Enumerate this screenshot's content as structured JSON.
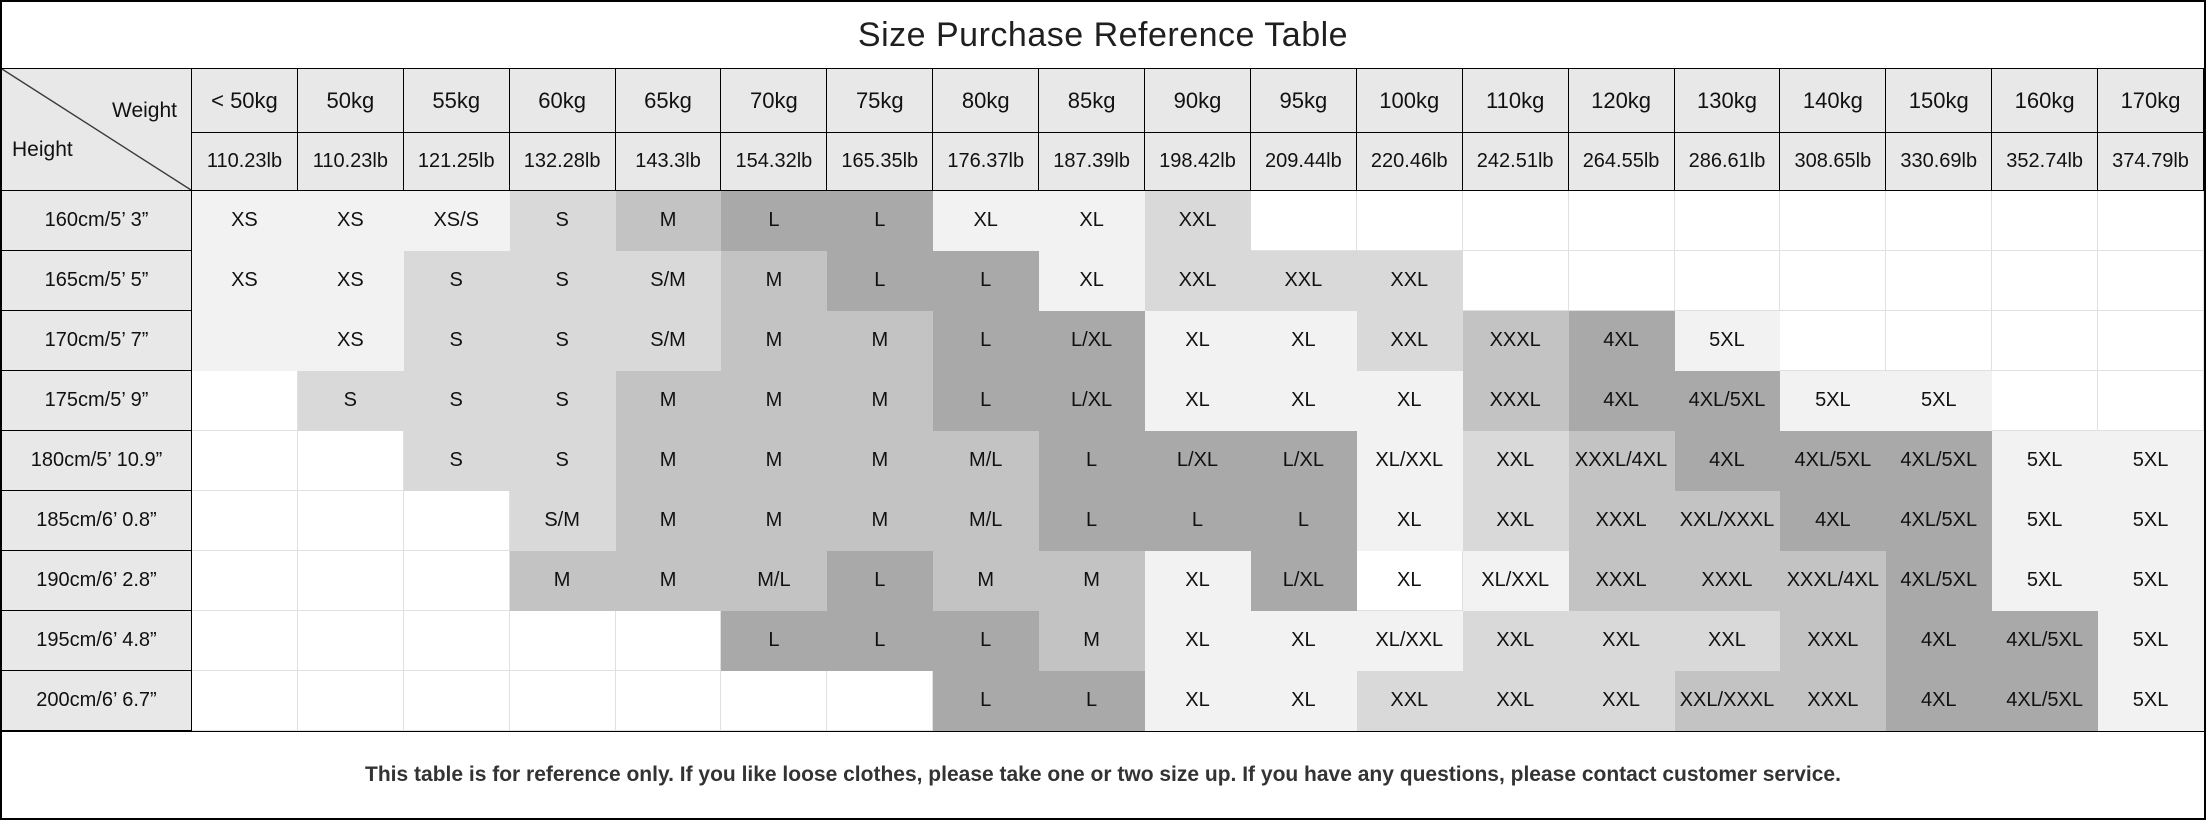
{
  "title": "Size Purchase Reference Table",
  "corner": {
    "weight_label": "Weight",
    "height_label": "Height"
  },
  "footer": "This table is for reference only. If you like loose clothes, please take one or two size up. If you have any questions, please contact customer service.",
  "colors": {
    "header_bg": "#e8e8e8",
    "grid_line": "#e0e0e0",
    "header_border": "#000000",
    "shades": [
      "#ffffff",
      "#f2f2f2",
      "#d9d9d9",
      "#c3c3c3",
      "#a9a9a9"
    ]
  },
  "columns": [
    {
      "kg": "< 50kg",
      "lb": "110.23lb"
    },
    {
      "kg": "50kg",
      "lb": "110.23lb"
    },
    {
      "kg": "55kg",
      "lb": "121.25lb"
    },
    {
      "kg": "60kg",
      "lb": "132.28lb"
    },
    {
      "kg": "65kg",
      "lb": "143.3lb"
    },
    {
      "kg": "70kg",
      "lb": "154.32lb"
    },
    {
      "kg": "75kg",
      "lb": "165.35lb"
    },
    {
      "kg": "80kg",
      "lb": "176.37lb"
    },
    {
      "kg": "85kg",
      "lb": "187.39lb"
    },
    {
      "kg": "90kg",
      "lb": "198.42lb"
    },
    {
      "kg": "95kg",
      "lb": "209.44lb"
    },
    {
      "kg": "100kg",
      "lb": "220.46lb"
    },
    {
      "kg": "110kg",
      "lb": "242.51lb"
    },
    {
      "kg": "120kg",
      "lb": "264.55lb"
    },
    {
      "kg": "130kg",
      "lb": "286.61lb"
    },
    {
      "kg": "140kg",
      "lb": "308.65lb"
    },
    {
      "kg": "150kg",
      "lb": "330.69lb"
    },
    {
      "kg": "160kg",
      "lb": "352.74lb"
    },
    {
      "kg": "170kg",
      "lb": "374.79lb"
    }
  ],
  "rows": [
    {
      "height": "160cm/5’ 3”",
      "cells": [
        {
          "t": "XS",
          "s": 1
        },
        {
          "t": "XS",
          "s": 1
        },
        {
          "t": "XS/S",
          "s": 1
        },
        {
          "t": "S",
          "s": 2
        },
        {
          "t": "M",
          "s": 3
        },
        {
          "t": "L",
          "s": 4
        },
        {
          "t": "L",
          "s": 4
        },
        {
          "t": "XL",
          "s": 1
        },
        {
          "t": "XL",
          "s": 1
        },
        {
          "t": "XXL",
          "s": 2
        },
        {
          "t": "",
          "s": 0
        },
        {
          "t": "",
          "s": 0
        },
        {
          "t": "",
          "s": 0
        },
        {
          "t": "",
          "s": 0
        },
        {
          "t": "",
          "s": 0
        },
        {
          "t": "",
          "s": 0
        },
        {
          "t": "",
          "s": 0
        },
        {
          "t": "",
          "s": 0
        },
        {
          "t": "",
          "s": 0
        }
      ]
    },
    {
      "height": "165cm/5’ 5”",
      "cells": [
        {
          "t": "XS",
          "s": 1
        },
        {
          "t": "XS",
          "s": 1
        },
        {
          "t": "S",
          "s": 2
        },
        {
          "t": "S",
          "s": 2
        },
        {
          "t": "S/M",
          "s": 2
        },
        {
          "t": "M",
          "s": 3
        },
        {
          "t": "L",
          "s": 4
        },
        {
          "t": "L",
          "s": 4
        },
        {
          "t": "XL",
          "s": 1
        },
        {
          "t": "XXL",
          "s": 2
        },
        {
          "t": "XXL",
          "s": 2
        },
        {
          "t": "XXL",
          "s": 2
        },
        {
          "t": "",
          "s": 0
        },
        {
          "t": "",
          "s": 0
        },
        {
          "t": "",
          "s": 0
        },
        {
          "t": "",
          "s": 0
        },
        {
          "t": "",
          "s": 0
        },
        {
          "t": "",
          "s": 0
        },
        {
          "t": "",
          "s": 0
        }
      ]
    },
    {
      "height": "170cm/5’ 7”",
      "cells": [
        {
          "t": "",
          "s": 1
        },
        {
          "t": "XS",
          "s": 1
        },
        {
          "t": "S",
          "s": 2
        },
        {
          "t": "S",
          "s": 2
        },
        {
          "t": "S/M",
          "s": 2
        },
        {
          "t": "M",
          "s": 3
        },
        {
          "t": "M",
          "s": 3
        },
        {
          "t": "L",
          "s": 4
        },
        {
          "t": "L/XL",
          "s": 4
        },
        {
          "t": "XL",
          "s": 1
        },
        {
          "t": "XL",
          "s": 1
        },
        {
          "t": "XXL",
          "s": 2
        },
        {
          "t": "XXXL",
          "s": 3
        },
        {
          "t": "4XL",
          "s": 4
        },
        {
          "t": "5XL",
          "s": 1
        },
        {
          "t": "",
          "s": 0
        },
        {
          "t": "",
          "s": 0
        },
        {
          "t": "",
          "s": 0
        },
        {
          "t": "",
          "s": 0
        }
      ]
    },
    {
      "height": "175cm/5’ 9”",
      "cells": [
        {
          "t": "",
          "s": 0
        },
        {
          "t": "S",
          "s": 2
        },
        {
          "t": "S",
          "s": 2
        },
        {
          "t": "S",
          "s": 2
        },
        {
          "t": "M",
          "s": 3
        },
        {
          "t": "M",
          "s": 3
        },
        {
          "t": "M",
          "s": 3
        },
        {
          "t": "L",
          "s": 4
        },
        {
          "t": "L/XL",
          "s": 4
        },
        {
          "t": "XL",
          "s": 1
        },
        {
          "t": "XL",
          "s": 1
        },
        {
          "t": "XL",
          "s": 1
        },
        {
          "t": "XXXL",
          "s": 3
        },
        {
          "t": "4XL",
          "s": 4
        },
        {
          "t": "4XL/5XL",
          "s": 4
        },
        {
          "t": "5XL",
          "s": 1
        },
        {
          "t": "5XL",
          "s": 1
        },
        {
          "t": "",
          "s": 0
        },
        {
          "t": "",
          "s": 0
        }
      ]
    },
    {
      "height": "180cm/5’ 10.9”",
      "cells": [
        {
          "t": "",
          "s": 0
        },
        {
          "t": "",
          "s": 0
        },
        {
          "t": "S",
          "s": 2
        },
        {
          "t": "S",
          "s": 2
        },
        {
          "t": "M",
          "s": 3
        },
        {
          "t": "M",
          "s": 3
        },
        {
          "t": "M",
          "s": 3
        },
        {
          "t": "M/L",
          "s": 3
        },
        {
          "t": "L",
          "s": 4
        },
        {
          "t": "L/XL",
          "s": 4
        },
        {
          "t": "L/XL",
          "s": 4
        },
        {
          "t": "XL/XXL",
          "s": 1
        },
        {
          "t": "XXL",
          "s": 2
        },
        {
          "t": "XXXL/4XL",
          "s": 3
        },
        {
          "t": "4XL",
          "s": 4
        },
        {
          "t": "4XL/5XL",
          "s": 4
        },
        {
          "t": "4XL/5XL",
          "s": 4
        },
        {
          "t": "5XL",
          "s": 1
        },
        {
          "t": "5XL",
          "s": 1
        }
      ]
    },
    {
      "height": "185cm/6’ 0.8”",
      "cells": [
        {
          "t": "",
          "s": 0
        },
        {
          "t": "",
          "s": 0
        },
        {
          "t": "",
          "s": 0
        },
        {
          "t": "S/M",
          "s": 2
        },
        {
          "t": "M",
          "s": 3
        },
        {
          "t": "M",
          "s": 3
        },
        {
          "t": "M",
          "s": 3
        },
        {
          "t": "M/L",
          "s": 3
        },
        {
          "t": "L",
          "s": 4
        },
        {
          "t": "L",
          "s": 4
        },
        {
          "t": "L",
          "s": 4
        },
        {
          "t": "XL",
          "s": 1
        },
        {
          "t": "XXL",
          "s": 2
        },
        {
          "t": "XXXL",
          "s": 3
        },
        {
          "t": "XXL/XXXL",
          "s": 3
        },
        {
          "t": "4XL",
          "s": 4
        },
        {
          "t": "4XL/5XL",
          "s": 4
        },
        {
          "t": "5XL",
          "s": 1
        },
        {
          "t": "5XL",
          "s": 1
        }
      ]
    },
    {
      "height": "190cm/6’ 2.8”",
      "cells": [
        {
          "t": "",
          "s": 0
        },
        {
          "t": "",
          "s": 0
        },
        {
          "t": "",
          "s": 0
        },
        {
          "t": "M",
          "s": 3
        },
        {
          "t": "M",
          "s": 3
        },
        {
          "t": "M/L",
          "s": 3
        },
        {
          "t": "L",
          "s": 4
        },
        {
          "t": "M",
          "s": 3
        },
        {
          "t": "M",
          "s": 3
        },
        {
          "t": "XL",
          "s": 1
        },
        {
          "t": "L/XL",
          "s": 4
        },
        {
          "t": "XL",
          "s": 0
        },
        {
          "t": "XL/XXL",
          "s": 1
        },
        {
          "t": "XXXL",
          "s": 3
        },
        {
          "t": "XXXL",
          "s": 3
        },
        {
          "t": "XXXL/4XL",
          "s": 3
        },
        {
          "t": "4XL/5XL",
          "s": 4
        },
        {
          "t": "5XL",
          "s": 1
        },
        {
          "t": "5XL",
          "s": 1
        }
      ]
    },
    {
      "height": "195cm/6’ 4.8”",
      "cells": [
        {
          "t": "",
          "s": 0
        },
        {
          "t": "",
          "s": 0
        },
        {
          "t": "",
          "s": 0
        },
        {
          "t": "",
          "s": 0
        },
        {
          "t": "",
          "s": 0
        },
        {
          "t": "L",
          "s": 4
        },
        {
          "t": "L",
          "s": 4
        },
        {
          "t": "L",
          "s": 4
        },
        {
          "t": "M",
          "s": 3
        },
        {
          "t": "XL",
          "s": 1
        },
        {
          "t": "XL",
          "s": 1
        },
        {
          "t": "XL/XXL",
          "s": 1
        },
        {
          "t": "XXL",
          "s": 2
        },
        {
          "t": "XXL",
          "s": 2
        },
        {
          "t": "XXL",
          "s": 2
        },
        {
          "t": "XXXL",
          "s": 3
        },
        {
          "t": "4XL",
          "s": 4
        },
        {
          "t": "4XL/5XL",
          "s": 4
        },
        {
          "t": "5XL",
          "s": 1
        }
      ]
    },
    {
      "height": "200cm/6’ 6.7”",
      "cells": [
        {
          "t": "",
          "s": 0
        },
        {
          "t": "",
          "s": 0
        },
        {
          "t": "",
          "s": 0
        },
        {
          "t": "",
          "s": 0
        },
        {
          "t": "",
          "s": 0
        },
        {
          "t": "",
          "s": 0
        },
        {
          "t": "",
          "s": 0
        },
        {
          "t": "L",
          "s": 4
        },
        {
          "t": "L",
          "s": 4
        },
        {
          "t": "XL",
          "s": 1
        },
        {
          "t": "XL",
          "s": 1
        },
        {
          "t": "XXL",
          "s": 2
        },
        {
          "t": "XXL",
          "s": 2
        },
        {
          "t": "XXL",
          "s": 2
        },
        {
          "t": "XXL/XXXL",
          "s": 3
        },
        {
          "t": "XXXL",
          "s": 3
        },
        {
          "t": "4XL",
          "s": 4
        },
        {
          "t": "4XL/5XL",
          "s": 4
        },
        {
          "t": "5XL",
          "s": 1
        }
      ]
    }
  ]
}
